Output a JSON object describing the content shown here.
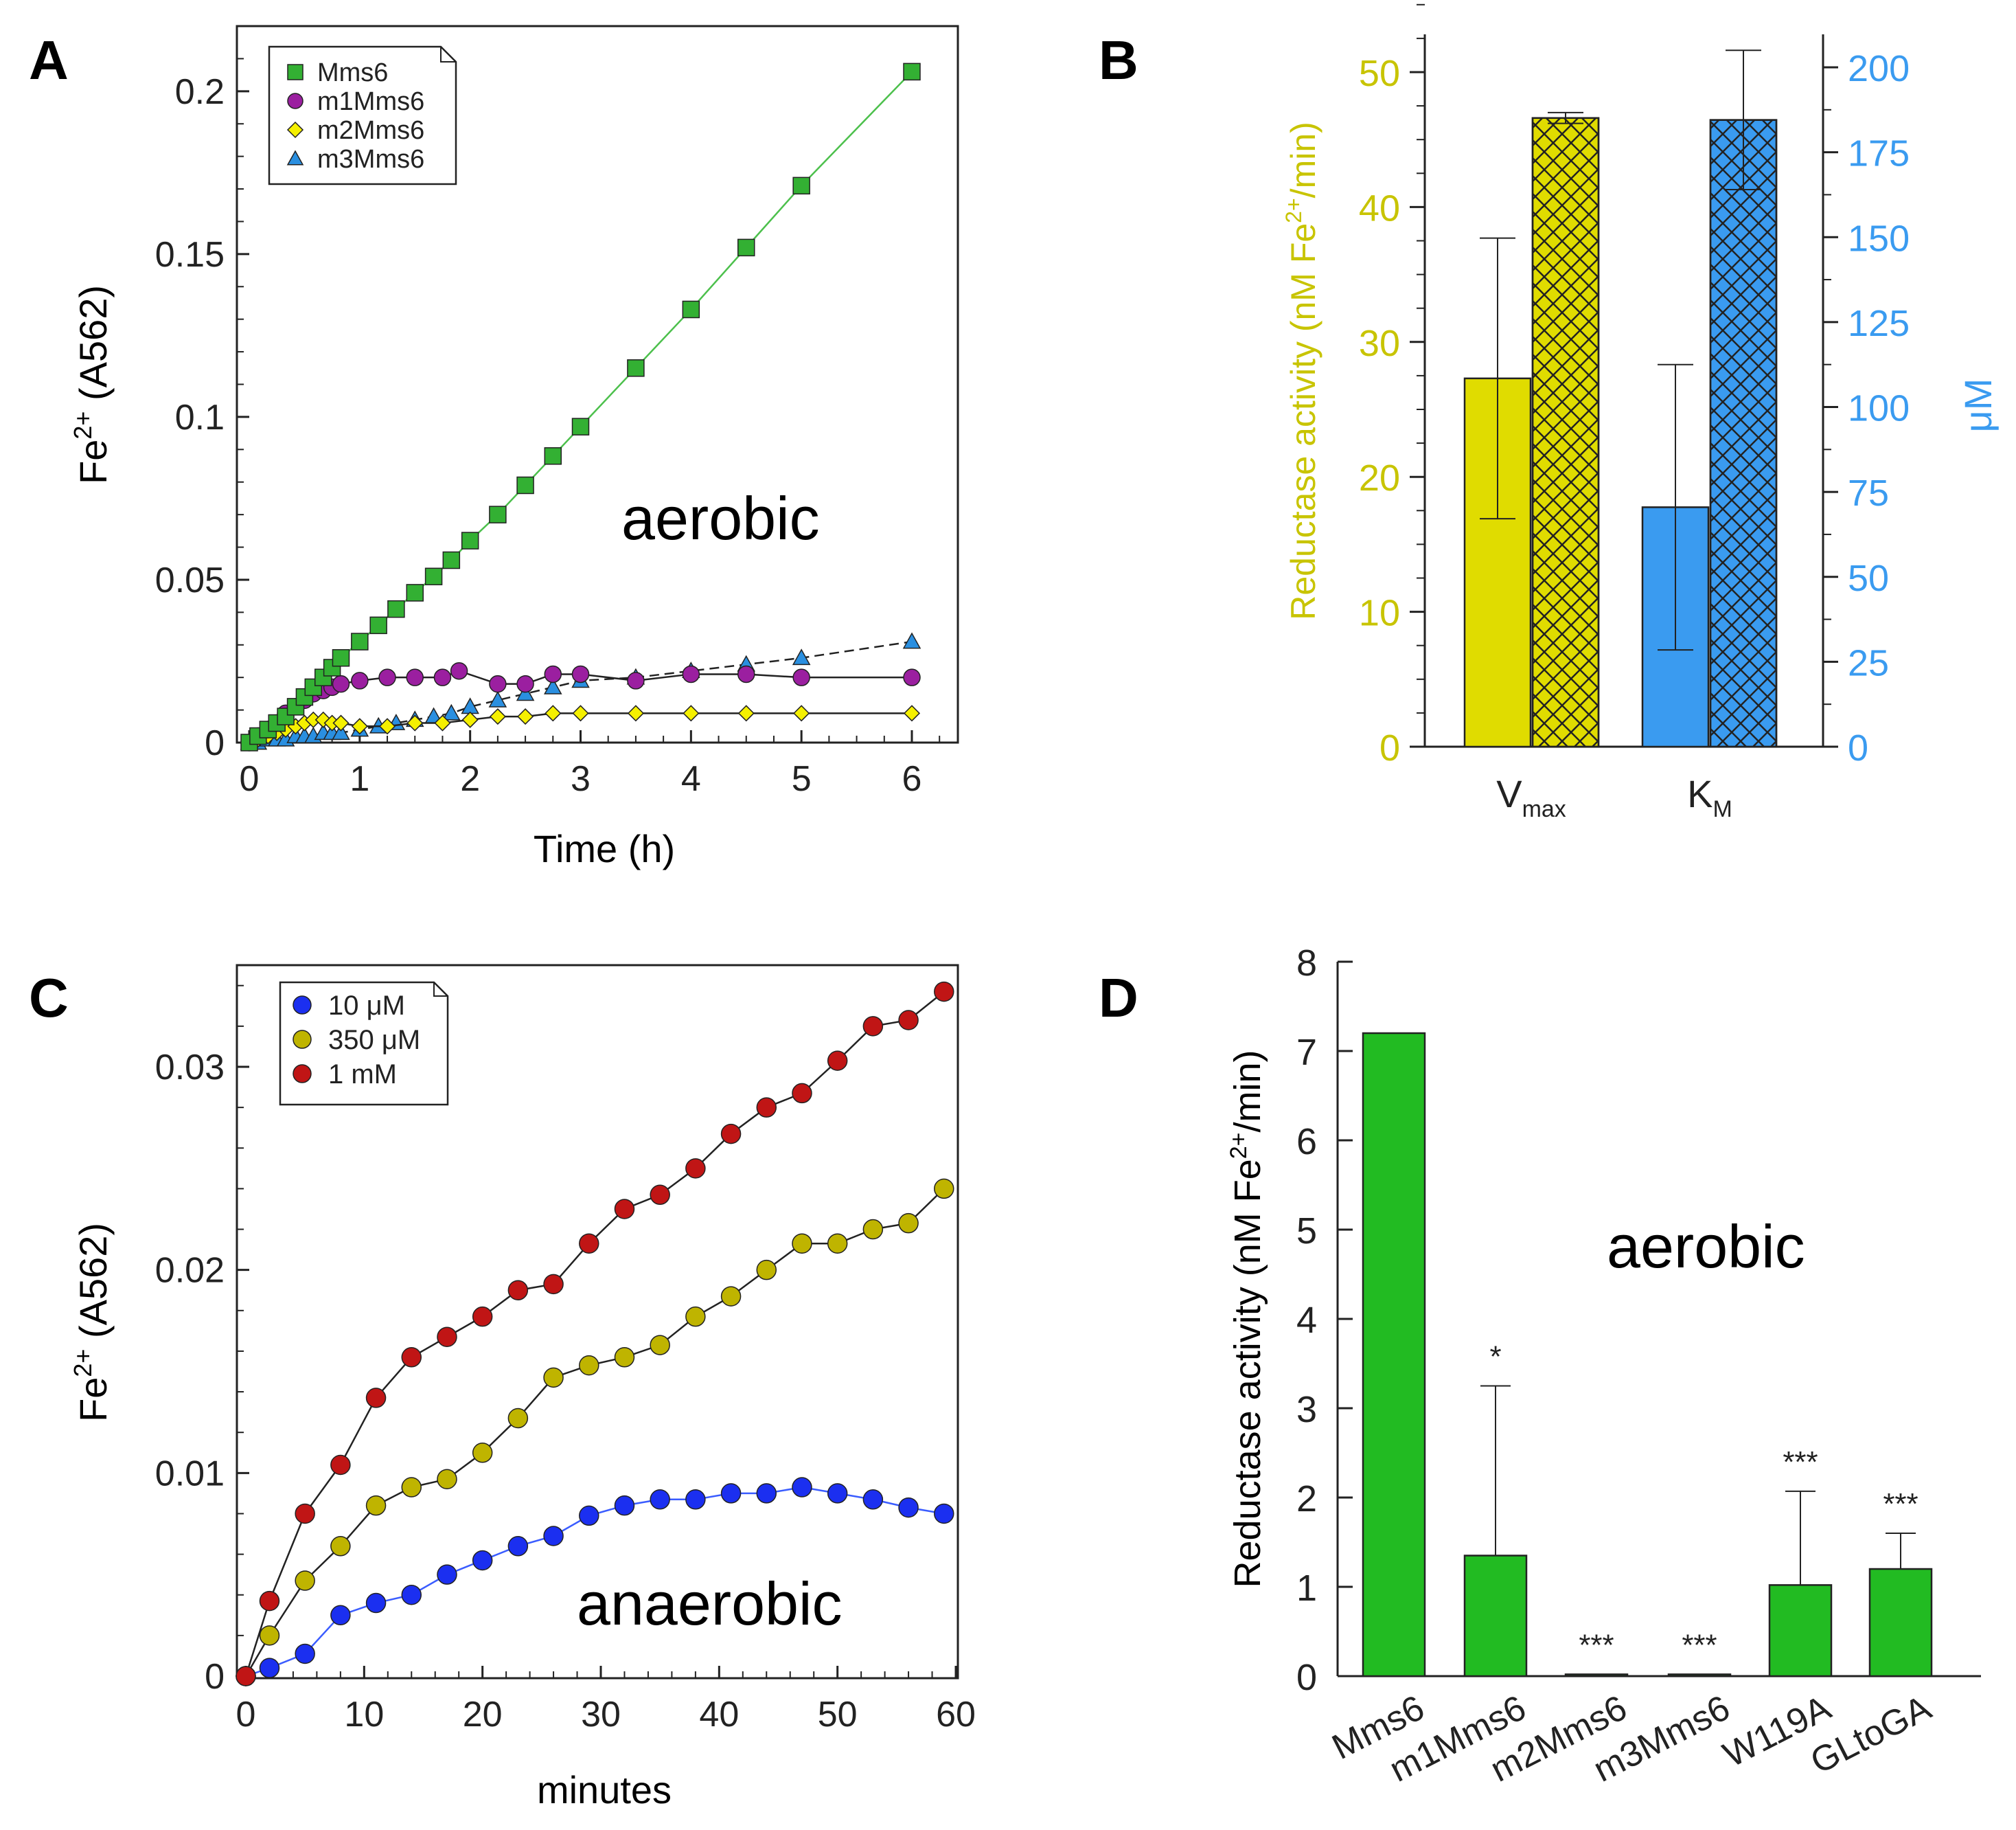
{
  "panels": {
    "A": {
      "letter": "A",
      "chart_data": {
        "type": "scatter",
        "xlabel": "Time (h)",
        "ylabel_base": "Fe",
        "ylabel_sup": "2+",
        "ylabel_tail": " (A562)",
        "annotation": "aerobic",
        "xlim": [
          -0.1,
          6.5
        ],
        "ylim": [
          0,
          0.22
        ],
        "xticks": [
          0,
          1,
          2,
          3,
          4,
          5,
          6
        ],
        "xtick_labels": [
          "0",
          "1",
          "2",
          "3",
          "4",
          "5",
          "6"
        ],
        "yticks": [
          0,
          0.05,
          0.1,
          0.15,
          0.2
        ],
        "ytick_labels": [
          "0",
          "0.05",
          "0.1",
          "0.15",
          "0.2"
        ],
        "series": [
          {
            "name": "Mms6",
            "marker": "square",
            "color": "#33b033",
            "line": "#4cc04c",
            "x": [
              0,
              0.08,
              0.17,
              0.25,
              0.33,
              0.42,
              0.5,
              0.58,
              0.67,
              0.75,
              0.83,
              1.0,
              1.17,
              1.33,
              1.5,
              1.67,
              1.83,
              2.0,
              2.25,
              2.5,
              2.75,
              3.0,
              3.5,
              4.0,
              4.5,
              5.0,
              6.0
            ],
            "y": [
              0.0,
              0.002,
              0.004,
              0.006,
              0.008,
              0.011,
              0.014,
              0.017,
              0.02,
              0.023,
              0.026,
              0.031,
              0.036,
              0.041,
              0.046,
              0.051,
              0.056,
              0.062,
              0.07,
              0.079,
              0.088,
              0.097,
              0.115,
              0.133,
              0.152,
              0.171,
              0.206
            ]
          },
          {
            "name": "m1Mms6",
            "marker": "circle",
            "color": "#9b1fa0",
            "line": "#222222",
            "x": [
              0,
              0.08,
              0.17,
              0.25,
              0.33,
              0.42,
              0.5,
              0.58,
              0.67,
              0.75,
              0.83,
              1.0,
              1.25,
              1.5,
              1.75,
              1.9,
              2.25,
              2.5,
              2.75,
              3.0,
              3.5,
              4.0,
              4.5,
              5.0,
              6.0
            ],
            "y": [
              0.0,
              0.002,
              0.004,
              0.006,
              0.009,
              0.011,
              0.013,
              0.015,
              0.016,
              0.017,
              0.018,
              0.019,
              0.02,
              0.02,
              0.02,
              0.022,
              0.018,
              0.018,
              0.021,
              0.021,
              0.019,
              0.021,
              0.021,
              0.02,
              0.02
            ]
          },
          {
            "name": "m2Mms6",
            "marker": "diamond",
            "color": "#f5f000",
            "line": "#222222",
            "x": [
              0,
              0.08,
              0.17,
              0.25,
              0.33,
              0.42,
              0.5,
              0.58,
              0.67,
              0.75,
              0.83,
              1.0,
              1.25,
              1.5,
              1.75,
              2.0,
              2.25,
              2.5,
              2.75,
              3.0,
              3.5,
              4.0,
              4.5,
              5.0,
              6.0
            ],
            "y": [
              0.0,
              0.001,
              0.002,
              0.003,
              0.004,
              0.005,
              0.006,
              0.007,
              0.007,
              0.006,
              0.006,
              0.005,
              0.005,
              0.006,
              0.006,
              0.007,
              0.008,
              0.008,
              0.009,
              0.009,
              0.009,
              0.009,
              0.009,
              0.009,
              0.009
            ]
          },
          {
            "name": "m3Mms6",
            "marker": "triangle",
            "color": "#2a8fe0",
            "line": "#222222",
            "dashed": true,
            "x": [
              0,
              0.08,
              0.17,
              0.25,
              0.33,
              0.42,
              0.5,
              0.58,
              0.67,
              0.75,
              0.83,
              1.0,
              1.17,
              1.33,
              1.5,
              1.67,
              1.83,
              2.0,
              2.25,
              2.5,
              2.75,
              3.0,
              3.5,
              4.0,
              4.5,
              5.0,
              6.0
            ],
            "y": [
              0.0,
              0.0,
              0.001,
              0.001,
              0.001,
              0.002,
              0.002,
              0.002,
              0.003,
              0.003,
              0.003,
              0.004,
              0.005,
              0.006,
              0.007,
              0.008,
              0.009,
              0.011,
              0.013,
              0.015,
              0.017,
              0.019,
              0.02,
              0.022,
              0.024,
              0.026,
              0.031
            ]
          }
        ]
      }
    },
    "B": {
      "letter": "B",
      "chart_data": {
        "type": "bar",
        "categories": [
          {
            "main": "V",
            "sub": "max"
          },
          {
            "main": "K",
            "sub": "M"
          }
        ],
        "left_axis": {
          "label": "Reductase activity (nM Fe",
          "label_sup": "2+",
          "label_tail": "/min)",
          "color": "#c8c400",
          "ylim": [
            0,
            55
          ],
          "ticks": [
            0,
            10,
            20,
            30,
            40,
            50
          ],
          "tick_labels": [
            "0",
            "10",
            "20",
            "30",
            "40",
            "50"
          ]
        },
        "right_axis": {
          "label": "μM",
          "color": "#3a9bf0",
          "ylim": [
            0,
            210
          ],
          "ticks": [
            0,
            25,
            50,
            75,
            100,
            125,
            150,
            175,
            200
          ],
          "tick_labels": [
            "0",
            "25",
            "50",
            "75",
            "100",
            "125",
            "150",
            "175",
            "200"
          ]
        },
        "bars": [
          {
            "group": "Vmax",
            "axis": "left",
            "value": 27.3,
            "err": 10.4,
            "fill": "#e0dc00",
            "hatch": false
          },
          {
            "group": "Vmax",
            "axis": "left",
            "value": 46.6,
            "err": 0.4,
            "fill": "#e0dc00",
            "hatch": true
          },
          {
            "group": "KM",
            "axis": "right",
            "value": 70.5,
            "err": 42,
            "fill": "#3a9bf0",
            "hatch": false
          },
          {
            "group": "KM",
            "axis": "right",
            "value": 184.5,
            "err": 20.5,
            "fill": "#3a9bf0",
            "hatch": true
          }
        ]
      }
    },
    "C": {
      "letter": "C",
      "chart_data": {
        "type": "line",
        "xlabel": "minutes",
        "ylabel_base": "Fe",
        "ylabel_sup": "2+",
        "ylabel_tail": " (A562)",
        "annotation": "anaerobic",
        "xlim": [
          -1,
          60
        ],
        "ylim": [
          0,
          0.035
        ],
        "xticks": [
          0,
          10,
          20,
          30,
          40,
          50,
          60
        ],
        "xtick_labels": [
          "0",
          "10",
          "20",
          "30",
          "40",
          "50",
          "60"
        ],
        "yticks": [
          0,
          0.01,
          0.02,
          0.03
        ],
        "ytick_labels": [
          "0",
          "0.01",
          "0.02",
          "0.03"
        ],
        "x": [
          0,
          2,
          5,
          8,
          11,
          14,
          17,
          20,
          23,
          26,
          29,
          32,
          35,
          38,
          41,
          44,
          47,
          50,
          53,
          56,
          59
        ],
        "series": [
          {
            "name": "10 μM",
            "color": "#1b2ff0",
            "line": "#3a5cff",
            "y": [
              0.0,
              0.0004,
              0.0011,
              0.003,
              0.0036,
              0.004,
              0.005,
              0.0057,
              0.0064,
              0.0069,
              0.0079,
              0.0084,
              0.0087,
              0.0087,
              0.009,
              0.009,
              0.0093,
              0.009,
              0.0087,
              0.0083,
              0.008
            ]
          },
          {
            "name": "350 μM",
            "color": "#bfb400",
            "line": "#222222",
            "y": [
              0.0,
              0.002,
              0.0047,
              0.0064,
              0.0084,
              0.0093,
              0.0097,
              0.011,
              0.0127,
              0.0147,
              0.0153,
              0.0157,
              0.0163,
              0.0177,
              0.0187,
              0.02,
              0.0213,
              0.0213,
              0.022,
              0.0223,
              0.024
            ]
          },
          {
            "name": "1 mM",
            "color": "#c01515",
            "line": "#222222",
            "y": [
              0.0,
              0.0037,
              0.008,
              0.0104,
              0.0137,
              0.0157,
              0.0167,
              0.0177,
              0.019,
              0.0193,
              0.0213,
              0.023,
              0.0237,
              0.025,
              0.0267,
              0.028,
              0.0287,
              0.0303,
              0.032,
              0.0323,
              0.0337
            ]
          }
        ]
      }
    },
    "D": {
      "letter": "D",
      "chart_data": {
        "type": "bar",
        "ylabel": "Reductase activity (nM Fe",
        "ylabel_sup": "2+",
        "ylabel_tail": "/min)",
        "annotation": "aerobic",
        "ylim": [
          0,
          8
        ],
        "yticks": [
          0,
          1,
          2,
          3,
          4,
          5,
          6,
          7,
          8
        ],
        "ytick_labels": [
          "0",
          "1",
          "2",
          "3",
          "4",
          "5",
          "6",
          "7",
          "8"
        ],
        "categories": [
          "Mms6",
          "m1Mms6",
          "m2Mms6",
          "m3Mms6",
          "W119A",
          "GLtoGA"
        ],
        "values": [
          7.2,
          1.35,
          0.02,
          0.02,
          1.02,
          1.2
        ],
        "errors": [
          0,
          1.9,
          0,
          0,
          1.05,
          0.4
        ],
        "significance": [
          "",
          "*",
          "***",
          "***",
          "***",
          "***"
        ],
        "bar_color": "#22bb22"
      }
    }
  }
}
